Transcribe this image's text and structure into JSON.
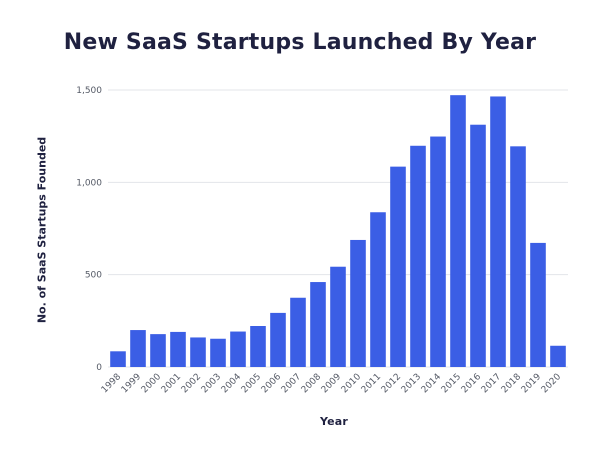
{
  "chart_data": {
    "type": "bar",
    "title": "New SaaS Startups Launched By Year",
    "xlabel": "Year",
    "ylabel": "No. of SaaS Startups Founded",
    "categories": [
      "1998",
      "1999",
      "2000",
      "2001",
      "2002",
      "2003",
      "2004",
      "2005",
      "2006",
      "2007",
      "2008",
      "2009",
      "2010",
      "2011",
      "2012",
      "2013",
      "2014",
      "2015",
      "2016",
      "2017",
      "2018",
      "2019",
      "2020"
    ],
    "values": [
      85,
      200,
      178,
      190,
      160,
      153,
      192,
      222,
      293,
      375,
      460,
      543,
      688,
      838,
      1085,
      1198,
      1248,
      1472,
      1312,
      1465,
      1195,
      672,
      115
    ],
    "ylim": [
      0,
      1500
    ],
    "yticks": [
      0,
      500,
      1000,
      1500
    ],
    "ytick_labels": [
      "0",
      "500",
      "1,000",
      "1,500"
    ],
    "grid": true,
    "colors": {
      "bar": "#3b5ee5",
      "grid": "#e3e5ea",
      "title": "#1f2140",
      "tick": "#555a66"
    }
  }
}
